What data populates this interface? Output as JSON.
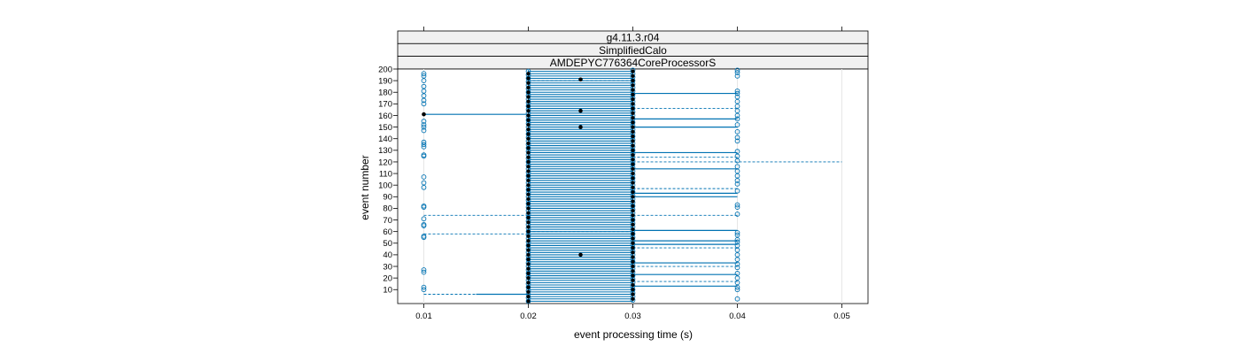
{
  "chart_data": {
    "type": "scatter",
    "title": "",
    "strips": [
      "g4.11.3.r04",
      "SimplifiedCalo",
      "AMDEPYC776364CoreProcessorS"
    ],
    "xlabel": "event processing time (s)",
    "ylabel": "event number",
    "xlim": [
      0.0075,
      0.0525
    ],
    "ylim": [
      -2,
      200
    ],
    "x_ticks": [
      "0.01",
      "0.02",
      "0.03",
      "0.04",
      "0.05"
    ],
    "y_ticks": [
      "10",
      "20",
      "30",
      "40",
      "50",
      "60",
      "70",
      "80",
      "90",
      "100",
      "110",
      "120",
      "130",
      "140",
      "150",
      "160",
      "170",
      "180",
      "190",
      "200"
    ],
    "grid": false,
    "colors": {
      "series": "#0072b2",
      "mean": "#000000",
      "strip_bg": "#f0f0f0"
    },
    "series": [
      {
        "values": {
          "x_0.01": [
            10,
            12,
            25,
            27,
            55,
            56,
            65,
            66,
            71,
            81,
            82,
            98,
            102,
            107,
            125,
            126,
            133,
            135,
            137,
            147,
            150,
            152,
            155,
            170,
            173,
            177,
            181,
            185,
            190,
            194,
            196
          ],
          "x_0.04": [
            2,
            10,
            12,
            16,
            20,
            24,
            29,
            32,
            36,
            40,
            44,
            48,
            51,
            53,
            57,
            59,
            75,
            81,
            83,
            95,
            101,
            104,
            108,
            112,
            116,
            121,
            125,
            129,
            138,
            141,
            146,
            152,
            157,
            160,
            164,
            168,
            172,
            176,
            179,
            181,
            194,
            197,
            199
          ]
        }
      }
    ],
    "mean_points": [
      [
        0.01,
        161
      ],
      [
        0.025,
        40
      ],
      [
        0.025,
        150
      ],
      [
        0.025,
        164
      ],
      [
        0.025,
        191
      ]
    ],
    "solid_segments": [
      [
        0.015,
        0.02,
        6
      ],
      [
        0.01,
        0.02,
        161
      ],
      [
        0.03,
        0.04,
        179
      ],
      [
        0.03,
        0.04,
        157
      ],
      [
        0.03,
        0.04,
        150
      ],
      [
        0.03,
        0.04,
        128
      ],
      [
        0.03,
        0.04,
        114
      ],
      [
        0.03,
        0.04,
        93
      ],
      [
        0.03,
        0.04,
        90
      ],
      [
        0.03,
        0.04,
        61
      ],
      [
        0.03,
        0.04,
        52
      ],
      [
        0.03,
        0.04,
        49
      ],
      [
        0.03,
        0.04,
        33
      ],
      [
        0.03,
        0.04,
        23
      ],
      [
        0.03,
        0.04,
        13
      ]
    ],
    "dashed_segments": [
      [
        0.01,
        0.02,
        6
      ],
      [
        0.01,
        0.02,
        58
      ],
      [
        0.01,
        0.02,
        74
      ],
      [
        0.03,
        0.05,
        120
      ],
      [
        0.03,
        0.04,
        166
      ],
      [
        0.03,
        0.04,
        124
      ],
      [
        0.03,
        0.04,
        97
      ],
      [
        0.03,
        0.04,
        74
      ],
      [
        0.03,
        0.04,
        46
      ],
      [
        0.03,
        0.04,
        30
      ],
      [
        0.03,
        0.04,
        17
      ],
      [
        0.02,
        0.03,
        190
      ],
      [
        0.02,
        0.03,
        150
      ],
      [
        0.02,
        0.03,
        60
      ]
    ]
  }
}
